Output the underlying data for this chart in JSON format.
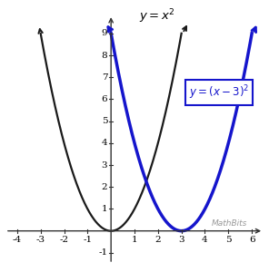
{
  "xlim": [
    -4.5,
    6.5
  ],
  "ylim": [
    -1.5,
    9.9
  ],
  "xticks": [
    -4,
    -3,
    -2,
    -1,
    1,
    2,
    3,
    4,
    5,
    6
  ],
  "yticks": [
    -1,
    1,
    2,
    3,
    4,
    5,
    6,
    7,
    8,
    9
  ],
  "xtick_labels": [
    "-4",
    "-3",
    "-2",
    "-1",
    "1",
    "2",
    "3",
    "4",
    "5",
    "6"
  ],
  "ytick_labels": [
    "-1",
    "1",
    "2",
    "3",
    "4",
    "5",
    "6",
    "7",
    "8",
    "9"
  ],
  "black_curve_color": "#1a1a1a",
  "blue_curve_color": "#1515cc",
  "grid_color": "#cccccc",
  "background_color": "#ffffff",
  "watermark": "MathBits",
  "watermark_color": "#999999",
  "label_box_color": "#1515cc",
  "axis_color": "#333333"
}
